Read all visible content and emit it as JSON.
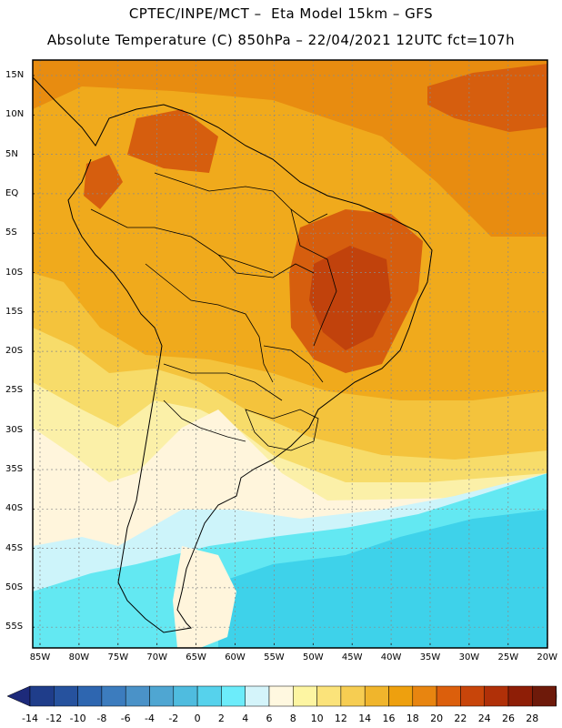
{
  "header": {
    "line1": "CPTEC/INPE/MCT –  Eta Model 15km – GFS",
    "line2": "Absolute Temperature (C) 850hPa – 22/04/2021 12UTC fct=107h"
  },
  "map": {
    "lat_labels": [
      "15N",
      "10N",
      "5N",
      "EQ",
      "5S",
      "10S",
      "15S",
      "20S",
      "25S",
      "30S",
      "35S",
      "40S",
      "45S",
      "50S",
      "55S"
    ],
    "lon_labels": [
      "85W",
      "80W",
      "75W",
      "70W",
      "65W",
      "60W",
      "55W",
      "50W",
      "45W",
      "40W",
      "35W",
      "30W",
      "25W",
      "20W"
    ],
    "temperature_colors": {
      "very_hot": "#c1420c",
      "hot": "#d65e0e",
      "warm": "#e88c10",
      "mild_warm": "#f0aa1c",
      "mild": "#f4c33c",
      "cool_mild": "#f7dc6a",
      "cool": "#fbf0a8",
      "cold": "#fff5dc",
      "very_cold": "#cdf4fa",
      "freezing": "#63e8f2",
      "ocean_cold": "#3ed2ea"
    }
  },
  "colorbar": {
    "labels": [
      "-14",
      "-12",
      "-10",
      "-8",
      "-6",
      "-4",
      "-2",
      "0",
      "2",
      "4",
      "6",
      "8",
      "10",
      "12",
      "14",
      "16",
      "18",
      "20",
      "22",
      "24",
      "26",
      "28"
    ],
    "colors": [
      "#1f3d8a",
      "#26529e",
      "#2e66b0",
      "#3c7cbe",
      "#4a92c8",
      "#4fa6d2",
      "#4fbcdf",
      "#56d2ec",
      "#6cecfa",
      "#d4f4fa",
      "#fff8e0",
      "#fdf5a2",
      "#fbe37a",
      "#f6cd52",
      "#f0b52c",
      "#eea00e",
      "#e88510",
      "#dc5f0c",
      "#c8450a",
      "#b03008",
      "#8e1e06",
      "#6e1a0a"
    ],
    "below_color": "#1d2a7a",
    "above_color": "#8e0f2e"
  }
}
